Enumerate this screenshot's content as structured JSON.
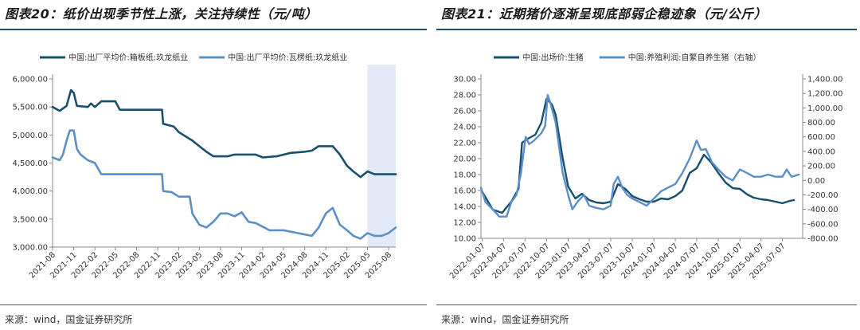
{
  "left": {
    "title": "图表20：纸价出现季节性上涨，关注持续性（元/吨）",
    "source": "来源：wind，国金证券研究所"
  },
  "right": {
    "title": "图表21：近期猪价逐渐呈现底部弱企稳迹象（元/公斤）",
    "source": "来源：wind，国金证券研究所"
  },
  "colors": {
    "dark": "#17506e",
    "light": "#5b8fc9",
    "shade": "#e3eaf7",
    "axis": "#888888"
  },
  "chart_data": [
    {
      "type": "line",
      "ylim": [
        3000,
        6000
      ],
      "yticks": [
        "6,000.00",
        "5,500.00",
        "5,000.00",
        "4,500.00",
        "4,000.00",
        "3,500.00",
        "3,000.00"
      ],
      "ytick_values": [
        6000,
        5500,
        5000,
        4500,
        4000,
        3500,
        3000
      ],
      "xticks": [
        "2021-08",
        "2021-11",
        "2022-02",
        "2022-05",
        "2022-08",
        "2022-11",
        "2023-02",
        "2023-05",
        "2023-08",
        "2023-11",
        "2024-02",
        "2024-05",
        "2024-08",
        "2024-11",
        "2025-02",
        "2025-05",
        "2025-08"
      ],
      "x_start": "2021-08",
      "x_end": "2025-09",
      "shaded_from": "2025-05",
      "series": [
        {
          "name": "中国:出厂平均价:箱板纸:玖龙纸业",
          "color_key": "dark",
          "points": [
            [
              "2021-08",
              5500
            ],
            [
              "2021-09",
              5430
            ],
            [
              "2021-10",
              5520
            ],
            [
              "2021-10-20",
              5800
            ],
            [
              "2021-11",
              5750
            ],
            [
              "2021-11-15",
              5520
            ],
            [
              "2022-01",
              5500
            ],
            [
              "2022-01-15",
              5560
            ],
            [
              "2022-02",
              5500
            ],
            [
              "2022-03",
              5600
            ],
            [
              "2022-05",
              5600
            ],
            [
              "2022-05-20",
              5450
            ],
            [
              "2022-11-20",
              5450
            ],
            [
              "2022-11-25",
              5200
            ],
            [
              "2023-01-10",
              5150
            ],
            [
              "2023-02",
              5050
            ],
            [
              "2023-04",
              4900
            ],
            [
              "2023-05",
              4800
            ],
            [
              "2023-06",
              4700
            ],
            [
              "2023-07",
              4620
            ],
            [
              "2023-09",
              4620
            ],
            [
              "2023-10",
              4650
            ],
            [
              "2023-12",
              4650
            ],
            [
              "2024-01",
              4650
            ],
            [
              "2024-02",
              4600
            ],
            [
              "2024-04",
              4620
            ],
            [
              "2024-06",
              4680
            ],
            [
              "2024-08",
              4700
            ],
            [
              "2024-09",
              4720
            ],
            [
              "2024-10",
              4800
            ],
            [
              "2024-12",
              4800
            ],
            [
              "2025-01",
              4650
            ],
            [
              "2025-02",
              4450
            ],
            [
              "2025-03",
              4350
            ],
            [
              "2025-04",
              4250
            ],
            [
              "2025-05",
              4350
            ],
            [
              "2025-06",
              4300
            ],
            [
              "2025-09",
              4300
            ]
          ]
        },
        {
          "name": "中国:出厂平均价:瓦楞纸:玖龙纸业",
          "color_key": "light",
          "points": [
            [
              "2021-08",
              4600
            ],
            [
              "2021-09",
              4550
            ],
            [
              "2021-09-15",
              4650
            ],
            [
              "2021-10",
              4900
            ],
            [
              "2021-10-15",
              5080
            ],
            [
              "2021-11",
              5080
            ],
            [
              "2021-11-15",
              4750
            ],
            [
              "2021-12",
              4650
            ],
            [
              "2022-01",
              4550
            ],
            [
              "2022-02",
              4500
            ],
            [
              "2022-03",
              4300
            ],
            [
              "2022-08",
              4300
            ],
            [
              "2022-11",
              4300
            ],
            [
              "2022-11-20",
              4300
            ],
            [
              "2022-11-25",
              4000
            ],
            [
              "2023-01",
              3980
            ],
            [
              "2023-02",
              3900
            ],
            [
              "2023-03",
              3900
            ],
            [
              "2023-03-20",
              3900
            ],
            [
              "2023-04",
              3600
            ],
            [
              "2023-05",
              3400
            ],
            [
              "2023-06",
              3350
            ],
            [
              "2023-07",
              3450
            ],
            [
              "2023-08",
              3600
            ],
            [
              "2023-09",
              3600
            ],
            [
              "2023-10",
              3550
            ],
            [
              "2023-11",
              3620
            ],
            [
              "2023-12",
              3450
            ],
            [
              "2024-01",
              3430
            ],
            [
              "2024-03",
              3300
            ],
            [
              "2024-05",
              3300
            ],
            [
              "2024-07",
              3250
            ],
            [
              "2024-09",
              3200
            ],
            [
              "2024-10",
              3350
            ],
            [
              "2024-11",
              3600
            ],
            [
              "2024-12",
              3700
            ],
            [
              "2025-01",
              3400
            ],
            [
              "2025-02",
              3300
            ],
            [
              "2025-03",
              3200
            ],
            [
              "2025-04",
              3150
            ],
            [
              "2025-05",
              3250
            ],
            [
              "2025-06",
              3200
            ],
            [
              "2025-07",
              3200
            ],
            [
              "2025-08",
              3250
            ],
            [
              "2025-09",
              3350
            ]
          ]
        }
      ]
    },
    {
      "type": "line",
      "ylim": [
        10,
        30
      ],
      "y2lim": [
        -800,
        1400
      ],
      "yticks": [
        "30.00",
        "28.00",
        "26.00",
        "24.00",
        "22.00",
        "20.00",
        "18.00",
        "16.00",
        "14.00",
        "12.00",
        "10.00"
      ],
      "ytick_values": [
        30,
        28,
        26,
        24,
        22,
        20,
        18,
        16,
        14,
        12,
        10
      ],
      "y2ticks": [
        "1,400.00",
        "1,200.00",
        "1,000.00",
        "800.00",
        "600.00",
        "400.00",
        "200.00",
        "0.00",
        "-200.00",
        "-400.00",
        "-600.00",
        "-800.00"
      ],
      "y2tick_values": [
        1400,
        1200,
        1000,
        800,
        600,
        400,
        200,
        0,
        -200,
        -400,
        -600,
        -800
      ],
      "xticks": [
        "2022-01-07",
        "2022-04-07",
        "2022-07-07",
        "2022-10-07",
        "2023-01-07",
        "2023-04-07",
        "2023-07-07",
        "2023-10-07",
        "2024-01-07",
        "2024-04-07",
        "2024-07-07",
        "2024-10-07",
        "2025-01-07",
        "2025-04-07",
        "2025-07-07"
      ],
      "x_start": "2022-01-01",
      "x_end": "2025-10-01",
      "series": [
        {
          "name": "中国:出场价:生猪",
          "color_key": "dark",
          "axis": "left",
          "points": [
            [
              "2022-01-07",
              15.8
            ],
            [
              "2022-02-20",
              13.6
            ],
            [
              "2022-04-01",
              13.2
            ],
            [
              "2022-05-10",
              14.6
            ],
            [
              "2022-06-10",
              16.2
            ],
            [
              "2022-06-25",
              22.0
            ],
            [
              "2022-07-20",
              22.5
            ],
            [
              "2022-08-20",
              23.0
            ],
            [
              "2022-09-15",
              24.5
            ],
            [
              "2022-10-07",
              27.5
            ],
            [
              "2022-10-30",
              26.8
            ],
            [
              "2022-11-15",
              25.5
            ],
            [
              "2022-12-15",
              20.0
            ],
            [
              "2023-01-07",
              16.5
            ],
            [
              "2023-02-07",
              15.0
            ],
            [
              "2023-03-07",
              15.6
            ],
            [
              "2023-04-07",
              14.8
            ],
            [
              "2023-05-07",
              14.5
            ],
            [
              "2023-06-07",
              14.4
            ],
            [
              "2023-07-07",
              14.6
            ],
            [
              "2023-08-07",
              16.8
            ],
            [
              "2023-09-07",
              16.2
            ],
            [
              "2023-10-07",
              15.3
            ],
            [
              "2023-11-07",
              14.9
            ],
            [
              "2023-12-07",
              14.6
            ],
            [
              "2024-01-07",
              14.6
            ],
            [
              "2024-02-07",
              15.0
            ],
            [
              "2024-03-07",
              14.9
            ],
            [
              "2024-04-07",
              15.3
            ],
            [
              "2024-05-07",
              16.0
            ],
            [
              "2024-06-07",
              18.2
            ],
            [
              "2024-07-07",
              18.8
            ],
            [
              "2024-08-07",
              20.5
            ],
            [
              "2024-09-07",
              19.5
            ],
            [
              "2024-10-07",
              18.2
            ],
            [
              "2024-11-07",
              17.0
            ],
            [
              "2024-12-07",
              16.3
            ],
            [
              "2025-01-07",
              16.2
            ],
            [
              "2025-02-07",
              15.5
            ],
            [
              "2025-03-07",
              15.1
            ],
            [
              "2025-04-07",
              14.9
            ],
            [
              "2025-05-07",
              14.8
            ],
            [
              "2025-06-07",
              14.6
            ],
            [
              "2025-07-07",
              14.4
            ],
            [
              "2025-08-07",
              14.7
            ],
            [
              "2025-08-25",
              14.8
            ]
          ]
        },
        {
          "name": "中国:养殖利润:自繁自养生猪（右轴）",
          "color_key": "light",
          "axis": "right",
          "points": [
            [
              "2022-01-01",
              -100
            ],
            [
              "2022-01-20",
              -300
            ],
            [
              "2022-02-20",
              -400
            ],
            [
              "2022-03-20",
              -500
            ],
            [
              "2022-04-20",
              -500
            ],
            [
              "2022-05-10",
              -300
            ],
            [
              "2022-06-01",
              -200
            ],
            [
              "2022-06-20",
              100
            ],
            [
              "2022-07-10",
              600
            ],
            [
              "2022-07-25",
              500
            ],
            [
              "2022-08-15",
              550
            ],
            [
              "2022-09-15",
              650
            ],
            [
              "2022-10-01",
              750
            ],
            [
              "2022-10-12",
              1180
            ],
            [
              "2022-10-25",
              1050
            ],
            [
              "2022-11-15",
              800
            ],
            [
              "2022-12-15",
              100
            ],
            [
              "2023-01-07",
              -200
            ],
            [
              "2023-01-25",
              -400
            ],
            [
              "2023-02-15",
              -300
            ],
            [
              "2023-03-15",
              -200
            ],
            [
              "2023-04-07",
              -350
            ],
            [
              "2023-05-07",
              -380
            ],
            [
              "2023-06-07",
              -400
            ],
            [
              "2023-07-07",
              -350
            ],
            [
              "2023-07-20",
              -50
            ],
            [
              "2023-08-07",
              50
            ],
            [
              "2023-08-25",
              -100
            ],
            [
              "2023-09-15",
              -200
            ],
            [
              "2023-10-07",
              -250
            ],
            [
              "2023-11-07",
              -300
            ],
            [
              "2023-12-07",
              -350
            ],
            [
              "2024-01-07",
              -250
            ],
            [
              "2024-02-07",
              -150
            ],
            [
              "2024-03-07",
              -100
            ],
            [
              "2024-04-07",
              -50
            ],
            [
              "2024-05-07",
              100
            ],
            [
              "2024-06-07",
              300
            ],
            [
              "2024-07-07",
              550
            ],
            [
              "2024-07-25",
              420
            ],
            [
              "2024-08-15",
              430
            ],
            [
              "2024-09-10",
              250
            ],
            [
              "2024-10-07",
              150
            ],
            [
              "2024-11-07",
              50
            ],
            [
              "2024-12-07",
              0
            ],
            [
              "2025-01-07",
              150
            ],
            [
              "2025-02-07",
              100
            ],
            [
              "2025-03-07",
              50
            ],
            [
              "2025-04-07",
              50
            ],
            [
              "2025-05-07",
              80
            ],
            [
              "2025-06-07",
              50
            ],
            [
              "2025-07-07",
              50
            ],
            [
              "2025-07-25",
              150
            ],
            [
              "2025-08-15",
              50
            ],
            [
              "2025-09-15",
              80
            ]
          ]
        }
      ]
    }
  ]
}
